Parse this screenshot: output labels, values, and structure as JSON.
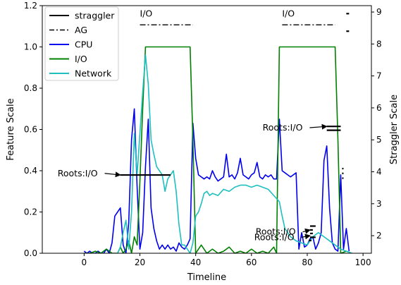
{
  "chart_data": {
    "type": "line",
    "xlabel": "Timeline",
    "ylabel_left": "Feature Scale",
    "ylabel_right": "Straggler Scale",
    "xlim": [
      -15,
      103
    ],
    "ylim_left": [
      0,
      1.2
    ],
    "ylim_right": [
      1.45,
      9.2
    ],
    "x_ticks": [
      0,
      20,
      40,
      60,
      80,
      100
    ],
    "y_ticks_left": [
      0.0,
      0.2,
      0.4,
      0.6,
      0.8,
      1.0,
      1.2
    ],
    "y_ticks_right": [
      2,
      3,
      4,
      5,
      6,
      7,
      8,
      9
    ],
    "legend": {
      "placement": "top-left",
      "entries": [
        {
          "label": "straggler",
          "color": "#000000",
          "style": "solid"
        },
        {
          "label": "AG",
          "color": "#000000",
          "style": "dashdot"
        },
        {
          "label": "CPU",
          "color": "#0000ee",
          "style": "solid"
        },
        {
          "label": "I/O",
          "color": "#008000",
          "style": "solid"
        },
        {
          "label": "Network",
          "color": "#1fbfbf",
          "style": "solid"
        }
      ]
    },
    "series": [
      {
        "name": "CPU",
        "axis": "left",
        "color": "#0000ee",
        "x": [
          0,
          1,
          2,
          3,
          4,
          5,
          6,
          7,
          8,
          9,
          10,
          11,
          12,
          13,
          14,
          15,
          16,
          17,
          18,
          19,
          20,
          21,
          22,
          23,
          24,
          25,
          26,
          27,
          28,
          29,
          30,
          31,
          32,
          33,
          34,
          35,
          36,
          37,
          38,
          39,
          40,
          41,
          42,
          43,
          44,
          45,
          46,
          47,
          48,
          49,
          50,
          51,
          52,
          53,
          54,
          55,
          56,
          57,
          58,
          59,
          60,
          61,
          62,
          63,
          64,
          65,
          66,
          67,
          68,
          69,
          70,
          71,
          72,
          73,
          74,
          75,
          76,
          77,
          78,
          79,
          80,
          81,
          82,
          83,
          84,
          85,
          86,
          87,
          88,
          89,
          90,
          91,
          92,
          93,
          94,
          95
        ],
        "y": [
          0.01,
          0.0,
          0.01,
          0.0,
          0.0,
          0.01,
          0.0,
          0.0,
          0.02,
          0.0,
          0.05,
          0.18,
          0.2,
          0.22,
          0.04,
          0.0,
          0.15,
          0.55,
          0.7,
          0.32,
          0.02,
          0.1,
          0.42,
          0.65,
          0.22,
          0.12,
          0.06,
          0.02,
          0.04,
          0.02,
          0.04,
          0.02,
          0.03,
          0.01,
          0.05,
          0.03,
          0.02,
          0.04,
          0.07,
          0.63,
          0.46,
          0.38,
          0.37,
          0.36,
          0.37,
          0.36,
          0.4,
          0.37,
          0.35,
          0.36,
          0.37,
          0.48,
          0.37,
          0.38,
          0.36,
          0.39,
          0.46,
          0.38,
          0.37,
          0.36,
          0.38,
          0.39,
          0.44,
          0.37,
          0.36,
          0.38,
          0.37,
          0.38,
          0.36,
          0.36,
          0.65,
          0.4,
          0.39,
          0.38,
          0.37,
          0.38,
          0.39,
          0.02,
          0.1,
          0.03,
          0.04,
          0.07,
          0.08,
          0.02,
          0.05,
          0.1,
          0.45,
          0.52,
          0.22,
          0.05,
          0.02,
          0.01,
          0.38,
          0.02,
          0.12,
          0.01
        ]
      },
      {
        "name": "I/O",
        "axis": "left",
        "color": "#008000",
        "x": [
          0,
          2,
          4,
          6,
          8,
          10,
          12,
          13,
          14,
          15,
          16,
          17,
          18,
          19,
          20,
          21,
          22,
          23,
          24,
          26,
          28,
          30,
          32,
          34,
          36,
          37,
          38,
          39,
          40,
          42,
          44,
          46,
          48,
          50,
          52,
          54,
          56,
          58,
          60,
          62,
          64,
          66,
          68,
          69,
          70,
          71,
          72,
          74,
          76,
          78,
          80,
          82,
          84,
          86,
          88,
          89,
          90,
          91,
          92,
          94,
          96
        ],
        "y": [
          0.0,
          0.0,
          0.01,
          0.0,
          0.02,
          0.0,
          0.0,
          0.03,
          0.0,
          0.02,
          0.06,
          0.0,
          0.08,
          0.04,
          0.35,
          0.7,
          1.0,
          1.0,
          1.0,
          1.0,
          1.0,
          1.0,
          1.0,
          1.0,
          1.0,
          1.0,
          1.0,
          0.55,
          0.0,
          0.04,
          0.0,
          0.02,
          0.0,
          0.01,
          0.03,
          0.0,
          0.01,
          0.0,
          0.02,
          0.0,
          0.01,
          0.0,
          0.03,
          0.0,
          1.0,
          1.0,
          1.0,
          1.0,
          1.0,
          1.0,
          1.0,
          1.0,
          1.0,
          1.0,
          1.0,
          1.0,
          1.0,
          0.55,
          0.0,
          0.01,
          0.0
        ]
      },
      {
        "name": "Network",
        "axis": "left",
        "color": "#1fbfbf",
        "x": [
          12,
          13,
          14,
          15,
          16,
          17,
          18,
          19,
          20,
          21,
          22,
          23,
          24,
          25,
          26,
          27,
          28,
          29,
          30,
          31,
          32,
          33,
          34,
          35,
          36,
          37,
          38,
          39,
          40,
          41,
          42,
          43,
          44,
          45,
          46,
          48,
          50,
          52,
          54,
          56,
          58,
          60,
          62,
          64,
          66,
          68,
          70,
          71,
          72,
          74,
          76,
          78,
          80,
          82,
          84,
          86,
          88,
          90,
          92,
          94,
          96
        ],
        "y": [
          0.0,
          0.03,
          0.1,
          0.16,
          0.02,
          0.2,
          0.58,
          0.38,
          0.58,
          0.78,
          0.96,
          0.82,
          0.55,
          0.48,
          0.42,
          0.4,
          0.38,
          0.3,
          0.36,
          0.38,
          0.4,
          0.3,
          0.14,
          0.04,
          0.04,
          0.02,
          0.0,
          0.05,
          0.18,
          0.2,
          0.24,
          0.29,
          0.3,
          0.28,
          0.29,
          0.28,
          0.31,
          0.3,
          0.32,
          0.33,
          0.33,
          0.32,
          0.33,
          0.32,
          0.31,
          0.28,
          0.25,
          0.18,
          0.12,
          0.08,
          0.06,
          0.05,
          0.04,
          0.08,
          0.1,
          0.08,
          0.06,
          0.04,
          0.02,
          0.01,
          0.0
        ]
      }
    ],
    "straggler_segments": [
      {
        "x": [
          13,
          31
        ],
        "y": 3.9
      },
      {
        "x": [
          87,
          92
        ],
        "y": 5.42
      },
      {
        "x": [
          87,
          92
        ],
        "y": 5.3
      },
      {
        "x": [
          81,
          83
        ],
        "y": 2.3
      },
      {
        "x": [
          81,
          82
        ],
        "y": 2.18
      },
      {
        "x": [
          81,
          82
        ],
        "y": 2.07
      },
      {
        "x": [
          81,
          83
        ],
        "y": 1.95
      },
      {
        "x": [
          80.5,
          81.5
        ],
        "y": 1.85
      },
      {
        "x": [
          94,
          95
        ],
        "y": 8.95
      },
      {
        "x": [
          94,
          95
        ],
        "y": 8.4
      },
      {
        "x": [
          92.5,
          93
        ],
        "y": 4.1
      },
      {
        "x": [
          92.5,
          93
        ],
        "y": 3.95
      },
      {
        "x": [
          92.5,
          93
        ],
        "y": 3.8
      }
    ],
    "ag_segments": [
      {
        "x": [
          20,
          39
        ],
        "y": 8.6
      },
      {
        "x": [
          71,
          90
        ],
        "y": 8.6
      }
    ],
    "annotations": [
      {
        "text": "I/O",
        "x": 20,
        "y": 8.95,
        "axis": "right"
      },
      {
        "text": "I/O",
        "x": 71,
        "y": 8.95,
        "axis": "right"
      },
      {
        "text": "Roots:I/O",
        "x": -9.5,
        "y": 3.95,
        "axis": "right",
        "arrow_to": [
          13,
          3.9
        ]
      },
      {
        "text": "Roots:I/O",
        "x": 64,
        "y": 5.38,
        "axis": "right",
        "arrow_to": [
          87,
          5.42
        ]
      },
      {
        "text": "Roots:I/O",
        "x": 61.5,
        "y": 2.12,
        "axis": "right",
        "arrow_to": [
          81,
          2.18
        ]
      },
      {
        "text": "Roots:I/O",
        "x": 61,
        "y": 1.95,
        "axis": "right",
        "arrow_to": [
          81,
          2.0
        ]
      }
    ]
  }
}
